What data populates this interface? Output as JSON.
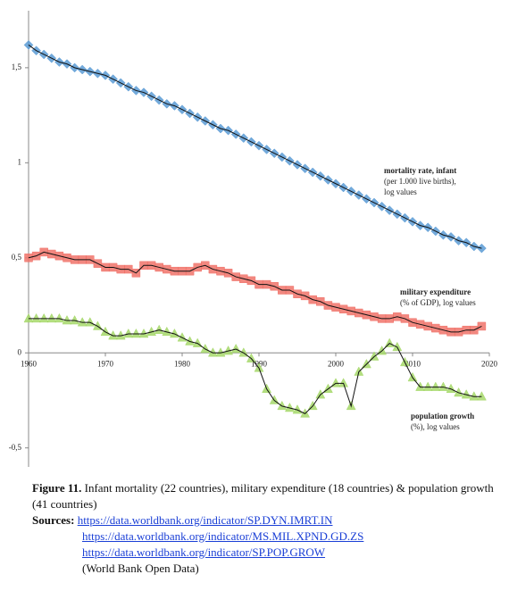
{
  "chart_data": {
    "type": "line",
    "x": [
      1960,
      1961,
      1962,
      1963,
      1964,
      1965,
      1966,
      1967,
      1968,
      1969,
      1970,
      1971,
      1972,
      1973,
      1974,
      1975,
      1976,
      1977,
      1978,
      1979,
      1980,
      1981,
      1982,
      1983,
      1984,
      1985,
      1986,
      1987,
      1988,
      1989,
      1990,
      1991,
      1992,
      1993,
      1994,
      1995,
      1996,
      1997,
      1998,
      1999,
      2000,
      2001,
      2002,
      2003,
      2004,
      2005,
      2006,
      2007,
      2008,
      2009,
      2010,
      2011,
      2012,
      2013,
      2014,
      2015,
      2016,
      2017,
      2018,
      2019
    ],
    "series": [
      {
        "name": "mortality rate, infant",
        "color": "#5b9bd5",
        "marker": "diamond",
        "values": [
          1.62,
          1.59,
          1.57,
          1.55,
          1.53,
          1.52,
          1.5,
          1.49,
          1.48,
          1.47,
          1.46,
          1.44,
          1.42,
          1.4,
          1.38,
          1.37,
          1.35,
          1.33,
          1.31,
          1.3,
          1.28,
          1.26,
          1.24,
          1.22,
          1.2,
          1.18,
          1.17,
          1.15,
          1.13,
          1.11,
          1.09,
          1.07,
          1.05,
          1.03,
          1.01,
          0.99,
          0.97,
          0.95,
          0.93,
          0.91,
          0.89,
          0.87,
          0.85,
          0.83,
          0.81,
          0.79,
          0.77,
          0.75,
          0.73,
          0.71,
          0.69,
          0.67,
          0.66,
          0.64,
          0.62,
          0.61,
          0.59,
          0.58,
          0.56,
          0.55
        ]
      },
      {
        "name": "military expenditure",
        "color": "#f0736a",
        "marker": "square",
        "values": [
          0.5,
          0.51,
          0.53,
          0.52,
          0.51,
          0.5,
          0.49,
          0.49,
          0.49,
          0.47,
          0.45,
          0.45,
          0.44,
          0.44,
          0.42,
          0.46,
          0.46,
          0.45,
          0.44,
          0.43,
          0.43,
          0.43,
          0.45,
          0.46,
          0.44,
          0.43,
          0.42,
          0.4,
          0.39,
          0.38,
          0.36,
          0.36,
          0.35,
          0.33,
          0.33,
          0.31,
          0.3,
          0.28,
          0.27,
          0.25,
          0.24,
          0.23,
          0.22,
          0.21,
          0.2,
          0.19,
          0.18,
          0.18,
          0.19,
          0.18,
          0.16,
          0.15,
          0.14,
          0.13,
          0.12,
          0.11,
          0.11,
          0.12,
          0.12,
          0.14
        ]
      },
      {
        "name": "population growth",
        "color": "#a6d86a",
        "marker": "triangle",
        "values": [
          0.18,
          0.18,
          0.18,
          0.18,
          0.18,
          0.17,
          0.17,
          0.16,
          0.16,
          0.14,
          0.11,
          0.09,
          0.09,
          0.1,
          0.1,
          0.1,
          0.11,
          0.12,
          0.11,
          0.1,
          0.08,
          0.06,
          0.05,
          0.02,
          0.0,
          0.0,
          0.01,
          0.02,
          0.0,
          -0.03,
          -0.08,
          -0.19,
          -0.25,
          -0.28,
          -0.29,
          -0.3,
          -0.32,
          -0.28,
          -0.22,
          -0.19,
          -0.16,
          -0.16,
          -0.28,
          -0.1,
          -0.06,
          -0.02,
          0.01,
          0.05,
          0.03,
          -0.05,
          -0.13,
          -0.18,
          -0.18,
          -0.18,
          -0.18,
          -0.19,
          -0.21,
          -0.22,
          -0.23,
          -0.23
        ]
      }
    ],
    "annotations": [
      {
        "title": "mortality rate, infant",
        "lines": [
          "(per 1.000 live births),",
          "log values"
        ]
      },
      {
        "title": "military expenditure",
        "lines": [
          "(% of GDP), log values"
        ]
      },
      {
        "title": "population growth",
        "lines": [
          "(%), log values"
        ]
      }
    ],
    "xlim": [
      1960,
      2020
    ],
    "xticks": [
      1960,
      1970,
      1980,
      1990,
      2000,
      2010,
      2020
    ],
    "ylim": [
      -0.6,
      1.8
    ],
    "yticks": [
      {
        "value": -0.5,
        "label": "-0,5"
      },
      0,
      {
        "value": 0.5,
        "label": "0,5"
      },
      1,
      {
        "value": 1.5,
        "label": "1,5"
      }
    ]
  },
  "caption": {
    "label": "Figure 11.",
    "text": "Infant mortality (22 countries), military expenditure (18 countries) & population growth (41 countries)",
    "sources_label": "Sources:",
    "sources": [
      "https://data.worldbank.org/indicator/SP.DYN.IMRT.IN",
      "https://data.worldbank.org/indicator/MS.MIL.XPND.GD.ZS",
      "https://data.worldbank.org/indicator/SP.POP.GROW"
    ],
    "note": "(World Bank Open Data)"
  }
}
